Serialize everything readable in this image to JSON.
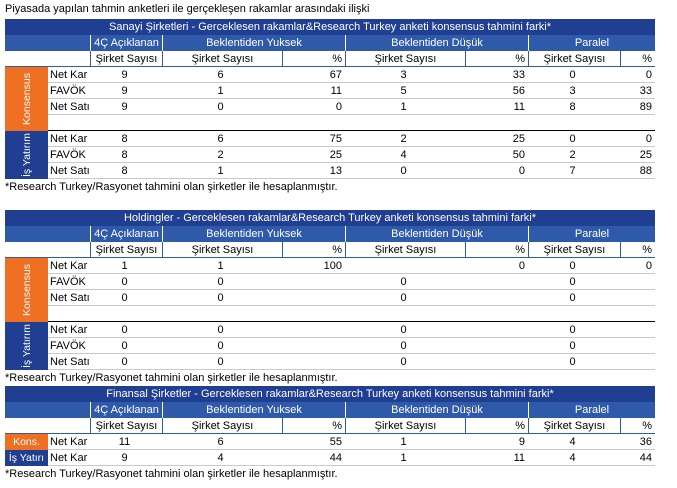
{
  "header": {
    "title": "Piyasada yapılan tahmin anketleri ile gerçekleşen rakamlar arasındaki ilişki"
  },
  "tables": [
    {
      "title": "Sanayi Şirketleri - Gerceklesen rakamlar&Research Turkey anketi konsensus tahmini farki*",
      "groups": [
        "4Ç Açıklanan",
        "Beklentiden Yuksek",
        "Beklentiden Düşük",
        "Paralel"
      ],
      "subheaders": [
        "Şirket Sayısı",
        "Şirket Sayısı",
        "%",
        "Şirket Sayısı",
        "%",
        "Şirket Sayısı",
        "%"
      ],
      "sections": [
        {
          "label": "Konsensus",
          "rows": [
            [
              "Net Kar",
              9,
              6,
              67,
              3,
              33,
              0,
              0
            ],
            [
              "FAVÖK",
              9,
              1,
              11,
              5,
              56,
              3,
              33
            ],
            [
              "Net Satış",
              9,
              0,
              0,
              1,
              11,
              8,
              89
            ]
          ]
        },
        {
          "label": "İş Yatırım",
          "rows": [
            [
              "Net Kar",
              8,
              6,
              75,
              2,
              25,
              0,
              0
            ],
            [
              "FAVÖK",
              8,
              2,
              25,
              4,
              50,
              2,
              25
            ],
            [
              "Net Satış",
              8,
              1,
              13,
              0,
              0,
              7,
              88
            ]
          ]
        }
      ],
      "footnote": "*Research Turkey/Rasyonet  tahmini olan şirketler ile hesaplanmıştır."
    },
    {
      "title": "Holdingler - Gerceklesen rakamlar&Research Turkey anketi konsensus tahmini farki*",
      "groups": [
        "4Ç Açıklanan",
        "Beklentiden Yuksek",
        "Beklentiden Düşük",
        "Paralel"
      ],
      "subheaders": [
        "Şirket Sayısı",
        "Şirket Sayısı",
        "%",
        "Şirket Sayısı",
        "%",
        "Şirket Sayısı",
        "%"
      ],
      "sections": [
        {
          "label": "Konsensus",
          "rows": [
            [
              "Net Kar",
              1,
              1,
              100,
              null,
              0,
              0,
              0
            ],
            [
              "FAVÖK",
              0,
              0,
              null,
              0,
              null,
              0,
              null
            ],
            [
              "Net Satış",
              0,
              0,
              null,
              0,
              null,
              0,
              null
            ]
          ]
        },
        {
          "label": "İş Yatırım",
          "rows": [
            [
              "Net Kar",
              0,
              0,
              null,
              0,
              null,
              0,
              null
            ],
            [
              "FAVÖK",
              0,
              0,
              null,
              0,
              null,
              0,
              null
            ],
            [
              "Net Satış",
              0,
              0,
              null,
              0,
              null,
              0,
              null
            ]
          ]
        }
      ],
      "footnote": "*Research Turkey/Rasyonet  tahmini olan şirketler ile hesaplanmıştır."
    },
    {
      "title": "Finansal Şirketler - Gerceklesen rakamlar&Research Turkey anketi konsensus tahmini farki*",
      "groups": [
        "4Ç Açıklanan",
        "Beklentiden Yuksek",
        "Beklentiden Düşük",
        "Paralel"
      ],
      "subheaders": [
        "Şirket Sayısı",
        "Şirket Sayısı",
        "%",
        "Şirket Sayısı",
        "%",
        "Şirket Sayısı",
        "%"
      ],
      "sections": [
        {
          "label": "Kons.",
          "rows": [
            [
              "Net Kar",
              11,
              6,
              55,
              1,
              9,
              4,
              36
            ]
          ]
        },
        {
          "label": "İş Yatırı",
          "rows": [
            [
              "Net Kar",
              9,
              4,
              44,
              1,
              11,
              4,
              44
            ]
          ]
        }
      ],
      "footnote": "*Research Turkey/Rasyonet  tahmini olan şirketler ile hesaplanmıştır."
    }
  ]
}
